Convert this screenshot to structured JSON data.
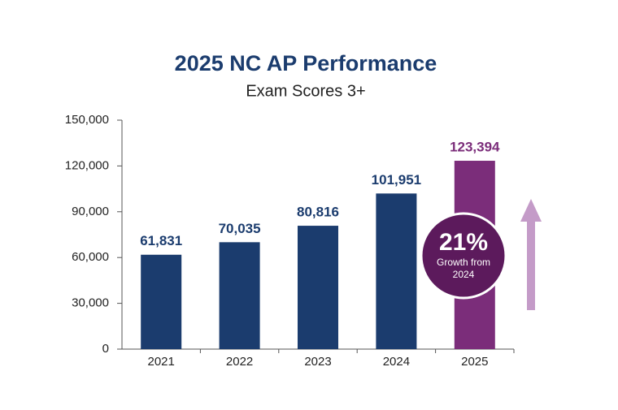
{
  "chart_data": {
    "type": "bar",
    "title": "2025 NC AP Performance",
    "subtitle": "Exam Scores 3+",
    "categories": [
      "2021",
      "2022",
      "2023",
      "2024",
      "2025"
    ],
    "values": [
      61831,
      70035,
      80816,
      101951,
      123394
    ],
    "value_labels": [
      "61,831",
      "70,035",
      "80,816",
      "101,951",
      "123,394"
    ],
    "colors": [
      "#1b3c6e",
      "#1b3c6e",
      "#1b3c6e",
      "#1b3c6e",
      "#7b2d7a"
    ],
    "ylim": [
      0,
      150000
    ],
    "yticks": [
      0,
      {
        "value": 30000,
        "label": "30,000"
      },
      {
        "value": 60000,
        "label": "60,000"
      },
      {
        "value": 90000,
        "label": "90,000"
      },
      {
        "value": 120000,
        "label": "120,000"
      },
      {
        "value": 150000,
        "label": "150,000"
      }
    ],
    "annotation": {
      "big": "21%",
      "line1": "Growth from",
      "line2": "2024"
    }
  }
}
